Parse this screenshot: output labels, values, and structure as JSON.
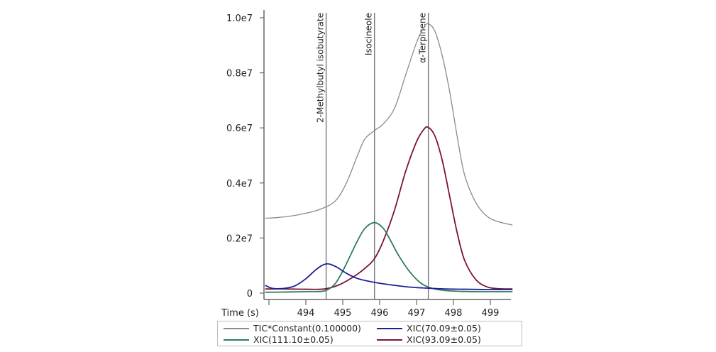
{
  "chart_data": {
    "type": "line",
    "title": "",
    "xlabel": "Time (s)",
    "ylabel": "",
    "xlim": [
      492.9,
      499.6
    ],
    "ylim": [
      0,
      10200000
    ],
    "grid": false,
    "legend_position": "bottom",
    "x_ticks": [
      494,
      495,
      496,
      497,
      498,
      499
    ],
    "y_ticks": [
      {
        "value": 0,
        "label": "0"
      },
      {
        "value": 2000000,
        "label": "0.2e7"
      },
      {
        "value": 4000000,
        "label": "0.4e7"
      },
      {
        "value": 6000000,
        "label": "0.6e7"
      },
      {
        "value": 8000000,
        "label": "0.8e7"
      },
      {
        "value": 10000000,
        "label": "1.0e7"
      }
    ],
    "markers": [
      {
        "label": "2-Methylbutyl isobutyrate",
        "x": 494.55
      },
      {
        "label": "Isocineole",
        "x": 495.86
      },
      {
        "label": "α-Terpinene",
        "x": 497.32
      }
    ],
    "series": [
      {
        "name": "TIC*Constant(0.100000)",
        "color": "#8a8a8a",
        "x": [
          492.9,
          493.2,
          493.6,
          494.0,
          494.4,
          494.8,
          495.1,
          495.4,
          495.6,
          495.86,
          496.1,
          496.4,
          496.7,
          497.0,
          497.2,
          497.32,
          497.5,
          497.7,
          497.9,
          498.1,
          498.3,
          498.6,
          498.9,
          499.2,
          499.6
        ],
        "y": [
          2720000,
          2740000,
          2800000,
          2900000,
          3050000,
          3350000,
          4000000,
          5000000,
          5600000,
          5900000,
          6150000,
          6700000,
          7900000,
          9100000,
          9650000,
          9780000,
          9500000,
          8600000,
          7300000,
          5700000,
          4300000,
          3300000,
          2800000,
          2600000,
          2470000
        ]
      },
      {
        "name": "XIC(70.09±0.05)",
        "color": "#1f1f9a",
        "x": [
          492.9,
          493.1,
          493.4,
          493.7,
          494.0,
          494.3,
          494.55,
          494.8,
          495.1,
          495.4,
          495.86,
          496.3,
          496.8,
          497.3,
          497.8,
          498.3,
          498.8,
          499.2,
          499.6
        ],
        "y": [
          280000,
          170000,
          170000,
          260000,
          520000,
          880000,
          1060000,
          970000,
          720000,
          530000,
          390000,
          300000,
          220000,
          180000,
          150000,
          140000,
          130000,
          130000,
          130000
        ]
      },
      {
        "name": "XIC(111.10±0.05)",
        "color": "#2e7d5b",
        "x": [
          492.9,
          493.5,
          494.0,
          494.4,
          494.6,
          494.8,
          495.0,
          495.2,
          495.4,
          495.6,
          495.86,
          496.1,
          496.3,
          496.5,
          496.8,
          497.1,
          497.4,
          497.8,
          498.3,
          498.8,
          499.2,
          499.6
        ],
        "y": [
          30000,
          40000,
          50000,
          60000,
          130000,
          350000,
          800000,
          1350000,
          1900000,
          2350000,
          2560000,
          2350000,
          1900000,
          1400000,
          800000,
          380000,
          180000,
          90000,
          60000,
          50000,
          50000,
          50000
        ]
      },
      {
        "name": "XIC(93.09±0.05)",
        "color": "#7a1535",
        "x": [
          492.9,
          493.5,
          494.0,
          494.5,
          494.9,
          495.3,
          495.6,
          495.86,
          496.1,
          496.4,
          496.7,
          497.0,
          497.2,
          497.32,
          497.5,
          497.7,
          497.9,
          498.1,
          498.3,
          498.6,
          498.9,
          499.2,
          499.6
        ],
        "y": [
          150000,
          150000,
          140000,
          150000,
          300000,
          600000,
          900000,
          1250000,
          1900000,
          3000000,
          4400000,
          5500000,
          5950000,
          6020000,
          5700000,
          4800000,
          3500000,
          2200000,
          1200000,
          500000,
          230000,
          160000,
          150000
        ]
      }
    ]
  },
  "axes": {
    "xlabel": "Time (s)"
  },
  "legend": {
    "items": [
      {
        "label": "TIC*Constant(0.100000)",
        "color": "#8a8a8a"
      },
      {
        "label": "XIC(70.09±0.05)",
        "color": "#1f1f9a"
      },
      {
        "label": "XIC(111.10±0.05)",
        "color": "#2e7d5b"
      },
      {
        "label": "XIC(93.09±0.05)",
        "color": "#7a1535"
      }
    ]
  }
}
